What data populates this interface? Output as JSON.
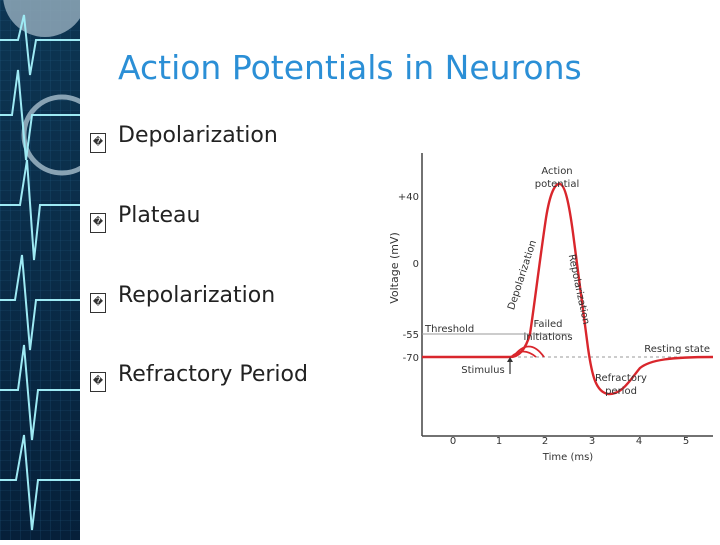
{
  "slide": {
    "title": "Action Potentials in Neurons",
    "bullet_marker": "�",
    "bullets": [
      "Depolarization",
      "Plateau",
      "Repolarization",
      "Refractory Period"
    ]
  },
  "diagram": {
    "ylabel": "Voltage (mV)",
    "xlabel": "Time (ms)",
    "y_ticks": [
      "+40",
      "0",
      "-55",
      "-70"
    ],
    "x_ticks": [
      "0",
      "1",
      "2",
      "3",
      "4",
      "5"
    ],
    "annotations": {
      "action_potential": [
        "Action",
        "potential"
      ],
      "depolarization": "Depolarization",
      "repolarization": "Repolarization",
      "threshold": "Threshold",
      "failed_initiations": [
        "Failed",
        "initiations"
      ],
      "resting_state": "Resting state",
      "stimulus": "Stimulus",
      "refractory_period": [
        "Refractory",
        "period"
      ]
    },
    "colors": {
      "trace": "#d9262c",
      "axis": "#444444",
      "text": "#333333",
      "title": "#2b8fd6"
    }
  }
}
